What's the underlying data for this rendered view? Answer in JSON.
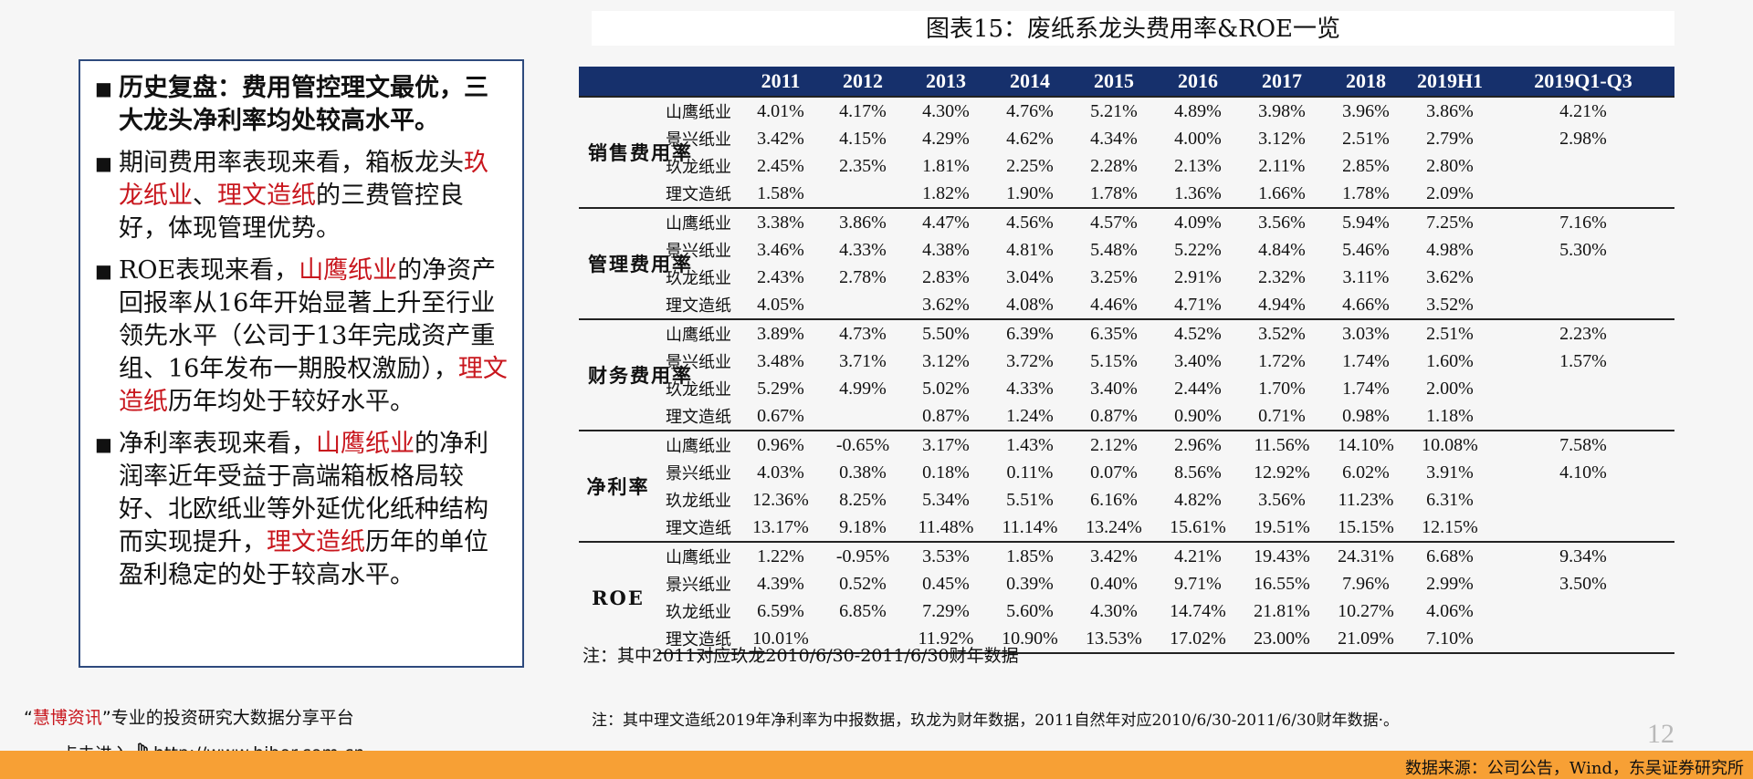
{
  "left_panel": {
    "bullets": [
      {
        "bold": true,
        "parts": [
          {
            "t": "历史复盘：费用管控理文最优，三大龙头净利率均处较高水平。",
            "hl": false
          }
        ]
      },
      {
        "bold": false,
        "parts": [
          {
            "t": "期间费用率表现来看，箱板龙头",
            "hl": false
          },
          {
            "t": "玖龙纸业",
            "hl": true
          },
          {
            "t": "、",
            "hl": false
          },
          {
            "t": "理文造纸",
            "hl": true
          },
          {
            "t": "的三费管控良好，体现管理优势。",
            "hl": false
          }
        ]
      },
      {
        "bold": false,
        "parts": [
          {
            "t": "ROE表现来看，",
            "hl": false
          },
          {
            "t": "山鹰纸业",
            "hl": true
          },
          {
            "t": "的净资产回报率从16年开始显著上升至行业领先水平（公司于13年完成资产重组、16年发布一期股权激励），",
            "hl": false
          },
          {
            "t": "理文造纸",
            "hl": true
          },
          {
            "t": "历年均处于较好水平。",
            "hl": false
          }
        ]
      },
      {
        "bold": false,
        "parts": [
          {
            "t": "净利率表现来看，",
            "hl": false
          },
          {
            "t": "山鹰纸业",
            "hl": true
          },
          {
            "t": "的净利润率近年受益于高端箱板格局较好、北欧纸业等外延优化纸种结构而实现提升，",
            "hl": false
          },
          {
            "t": "理文造纸",
            "hl": true
          },
          {
            "t": "历年的单位盈利稳定的处于较高水平。",
            "hl": false
          }
        ]
      }
    ]
  },
  "table": {
    "title": "图表15：废纸系龙头费用率&ROE一览",
    "headers": [
      "2011",
      "2012",
      "2013",
      "2014",
      "2015",
      "2016",
      "2017",
      "2018",
      "2019H1",
      "2019Q1-Q3"
    ],
    "groups": [
      {
        "name": "销售费用率",
        "rows": [
          {
            "company": "山鹰纸业",
            "values": [
              "4.01%",
              "4.17%",
              "4.30%",
              "4.76%",
              "5.21%",
              "4.89%",
              "3.98%",
              "3.96%",
              "3.86%",
              "4.21%"
            ]
          },
          {
            "company": "景兴纸业",
            "values": [
              "3.42%",
              "4.15%",
              "4.29%",
              "4.62%",
              "4.34%",
              "4.00%",
              "3.12%",
              "2.51%",
              "2.79%",
              "2.98%"
            ]
          },
          {
            "company": "玖龙纸业",
            "values": [
              "2.45%",
              "2.35%",
              "1.81%",
              "2.25%",
              "2.28%",
              "2.13%",
              "2.11%",
              "2.85%",
              "2.80%",
              ""
            ]
          },
          {
            "company": "理文造纸",
            "values": [
              "1.58%",
              "",
              "1.82%",
              "1.90%",
              "1.78%",
              "1.36%",
              "1.66%",
              "1.78%",
              "2.09%",
              ""
            ]
          }
        ]
      },
      {
        "name": "管理费用率",
        "rows": [
          {
            "company": "山鹰纸业",
            "values": [
              "3.38%",
              "3.86%",
              "4.47%",
              "4.56%",
              "4.57%",
              "4.09%",
              "3.56%",
              "5.94%",
              "7.25%",
              "7.16%"
            ]
          },
          {
            "company": "景兴纸业",
            "values": [
              "3.46%",
              "4.33%",
              "4.38%",
              "4.81%",
              "5.48%",
              "5.22%",
              "4.84%",
              "5.46%",
              "4.98%",
              "5.30%"
            ]
          },
          {
            "company": "玖龙纸业",
            "values": [
              "2.43%",
              "2.78%",
              "2.83%",
              "3.04%",
              "3.25%",
              "2.91%",
              "2.32%",
              "3.11%",
              "3.62%",
              ""
            ]
          },
          {
            "company": "理文造纸",
            "values": [
              "4.05%",
              "",
              "3.62%",
              "4.08%",
              "4.46%",
              "4.71%",
              "4.94%",
              "4.66%",
              "3.52%",
              ""
            ]
          }
        ]
      },
      {
        "name": "财务费用率",
        "rows": [
          {
            "company": "山鹰纸业",
            "values": [
              "3.89%",
              "4.73%",
              "5.50%",
              "6.39%",
              "6.35%",
              "4.52%",
              "3.52%",
              "3.03%",
              "2.51%",
              "2.23%"
            ]
          },
          {
            "company": "景兴纸业",
            "values": [
              "3.48%",
              "3.71%",
              "3.12%",
              "3.72%",
              "5.15%",
              "3.40%",
              "1.72%",
              "1.74%",
              "1.60%",
              "1.57%"
            ]
          },
          {
            "company": "玖龙纸业",
            "values": [
              "5.29%",
              "4.99%",
              "5.02%",
              "4.33%",
              "3.40%",
              "2.44%",
              "1.70%",
              "1.74%",
              "2.00%",
              ""
            ]
          },
          {
            "company": "理文造纸",
            "values": [
              "0.67%",
              "",
              "0.87%",
              "1.24%",
              "0.87%",
              "0.90%",
              "0.71%",
              "0.98%",
              "1.18%",
              ""
            ]
          }
        ]
      },
      {
        "name": "净利率",
        "rows": [
          {
            "company": "山鹰纸业",
            "values": [
              "0.96%",
              "-0.65%",
              "3.17%",
              "1.43%",
              "2.12%",
              "2.96%",
              "11.56%",
              "14.10%",
              "10.08%",
              "7.58%"
            ]
          },
          {
            "company": "景兴纸业",
            "values": [
              "4.03%",
              "0.38%",
              "0.18%",
              "0.11%",
              "0.07%",
              "8.56%",
              "12.92%",
              "6.02%",
              "3.91%",
              "4.10%"
            ]
          },
          {
            "company": "玖龙纸业",
            "values": [
              "12.36%",
              "8.25%",
              "5.34%",
              "5.51%",
              "6.16%",
              "4.82%",
              "3.56%",
              "11.23%",
              "6.31%",
              ""
            ]
          },
          {
            "company": "理文造纸",
            "values": [
              "13.17%",
              "9.18%",
              "11.48%",
              "11.14%",
              "13.24%",
              "15.61%",
              "19.51%",
              "15.15%",
              "12.15%",
              ""
            ]
          }
        ]
      },
      {
        "name": "ROE",
        "rows": [
          {
            "company": "山鹰纸业",
            "values": [
              "1.22%",
              "-0.95%",
              "3.53%",
              "1.85%",
              "3.42%",
              "4.21%",
              "19.43%",
              "24.31%",
              "6.68%",
              "9.34%"
            ]
          },
          {
            "company": "景兴纸业",
            "values": [
              "4.39%",
              "0.52%",
              "0.45%",
              "0.39%",
              "0.40%",
              "9.71%",
              "16.55%",
              "7.96%",
              "2.99%",
              "3.50%"
            ]
          },
          {
            "company": "玖龙纸业",
            "values": [
              "6.59%",
              "6.85%",
              "7.29%",
              "5.60%",
              "4.30%",
              "14.74%",
              "21.81%",
              "10.27%",
              "4.06%",
              ""
            ]
          },
          {
            "company": "理文造纸",
            "values": [
              "10.01%",
              "",
              "11.92%",
              "10.90%",
              "13.53%",
              "17.02%",
              "23.00%",
              "21.09%",
              "7.10%",
              ""
            ]
          }
        ]
      }
    ],
    "note": "注：其中2011对应玖龙2010/6/30-2011/6/30财年数据"
  },
  "bottom_note": "注：其中理文造纸2019年净利率为中报数据，玖龙为财年数据，2011自然年对应2010/6/30-2011/6/30财年数据·。",
  "platform": {
    "name": "慧博资讯",
    "slogan": "专业的投资研究大数据分享平台",
    "enter": "点击进入",
    "url": "http://www.hibor.com.cn"
  },
  "page_number": "12",
  "source": "数据来源：公司公告，Wind，东吴证券研究所"
}
